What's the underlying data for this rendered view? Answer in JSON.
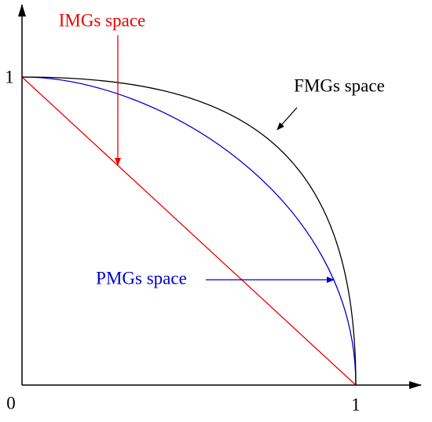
{
  "axes": {
    "y_tick": "1",
    "origin": "0",
    "x_tick": "1"
  },
  "labels": {
    "imgs": "IMGs space",
    "fmgs": "FMGs space",
    "pmgs": "PMGs space"
  }
}
